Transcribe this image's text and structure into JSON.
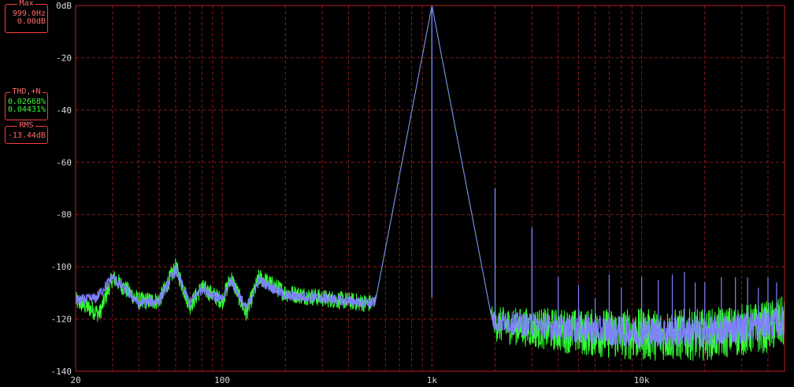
{
  "readouts": {
    "max": {
      "title": "Max",
      "freq": "999.0Hz",
      "level": "0.00dB"
    },
    "thd": {
      "title": "THD,+N",
      "ch1": "0.02668%",
      "ch2": "0.04431%"
    },
    "rms": {
      "title": "RMS",
      "value": "-13.44dB"
    }
  },
  "colors": {
    "background": "#000000",
    "grid": "#8a1a1a",
    "frame": "#c02020",
    "readout_border": "#ff3b3b",
    "channel_green": "#33ff33",
    "channel_blue": "#8080ff"
  },
  "chart_data": {
    "type": "line",
    "x_scale": "log",
    "xlim": [
      20,
      48000
    ],
    "ylim": [
      -140,
      0
    ],
    "x_ticks": [
      {
        "value": 20,
        "label": "20"
      },
      {
        "value": 100,
        "label": "100"
      },
      {
        "value": 1000,
        "label": "1k"
      },
      {
        "value": 10000,
        "label": "10k"
      }
    ],
    "y_ticks": [
      {
        "value": 0,
        "label": "0dB"
      },
      {
        "value": -20,
        "label": "-20"
      },
      {
        "value": -40,
        "label": "-40"
      },
      {
        "value": -60,
        "label": "-60"
      },
      {
        "value": -80,
        "label": "-80"
      },
      {
        "value": -100,
        "label": "-100"
      },
      {
        "value": -120,
        "label": "-120"
      },
      {
        "value": -140,
        "label": "-140"
      }
    ],
    "grid": true,
    "series": [
      {
        "color": "#33ff33",
        "noise_floor": [
          [
            20,
            -113
          ],
          [
            26,
            -118
          ],
          [
            30,
            -104
          ],
          [
            40,
            -113
          ],
          [
            50,
            -113
          ],
          [
            60,
            -100
          ],
          [
            70,
            -115
          ],
          [
            80,
            -108
          ],
          [
            100,
            -113
          ],
          [
            110,
            -104
          ],
          [
            130,
            -118
          ],
          [
            150,
            -104
          ],
          [
            200,
            -110
          ],
          [
            300,
            -112
          ],
          [
            500,
            -114
          ],
          [
            800,
            -113
          ],
          [
            950,
            -110
          ],
          [
            1200,
            -117
          ],
          [
            2000,
            -122
          ],
          [
            5000,
            -125
          ],
          [
            10000,
            -126
          ],
          [
            20000,
            -126
          ],
          [
            40000,
            -123
          ],
          [
            48000,
            -121
          ]
        ],
        "noise_depth_dB": 10,
        "peaks": [
          [
            1000,
            0
          ],
          [
            2000,
            -70
          ],
          [
            3000,
            -85
          ],
          [
            4000,
            -116
          ],
          [
            5000,
            -116
          ]
        ]
      },
      {
        "color": "#8080ff",
        "noise_floor": [
          [
            20,
            -113
          ],
          [
            25,
            -112
          ],
          [
            30,
            -104
          ],
          [
            40,
            -114
          ],
          [
            50,
            -113
          ],
          [
            60,
            -101
          ],
          [
            70,
            -114
          ],
          [
            80,
            -108
          ],
          [
            100,
            -113
          ],
          [
            110,
            -105
          ],
          [
            130,
            -116
          ],
          [
            150,
            -105
          ],
          [
            200,
            -111
          ],
          [
            300,
            -112
          ],
          [
            500,
            -114
          ],
          [
            800,
            -112
          ],
          [
            950,
            -110
          ],
          [
            1200,
            -118
          ],
          [
            2000,
            -121
          ],
          [
            5000,
            -124
          ],
          [
            10000,
            -125
          ],
          [
            20000,
            -125
          ],
          [
            40000,
            -122
          ],
          [
            48000,
            -121
          ]
        ],
        "noise_depth_dB": 6,
        "peaks": [
          [
            1000,
            0
          ],
          [
            2000,
            -70
          ],
          [
            3000,
            -85
          ],
          [
            4000,
            -104
          ],
          [
            5000,
            -107
          ],
          [
            6000,
            -112
          ],
          [
            7000,
            -103
          ],
          [
            8000,
            -108
          ],
          [
            10000,
            -104
          ],
          [
            12000,
            -105
          ],
          [
            14000,
            -103
          ],
          [
            16000,
            -102
          ],
          [
            18000,
            -106
          ],
          [
            20000,
            -106
          ],
          [
            24000,
            -104
          ],
          [
            28000,
            -104
          ],
          [
            32000,
            -104
          ],
          [
            36000,
            -108
          ],
          [
            40000,
            -104
          ],
          [
            44000,
            -106
          ]
        ]
      }
    ]
  }
}
